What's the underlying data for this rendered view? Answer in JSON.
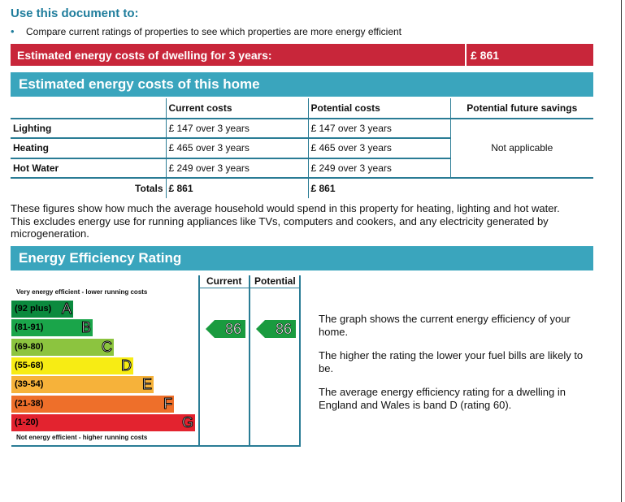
{
  "use_doc": {
    "title": "Use this document to:",
    "bullet": "Compare current ratings of properties to see which properties are more energy efficient"
  },
  "banner": {
    "label": "Estimated energy costs of dwelling for 3 years:",
    "value": "£ 861"
  },
  "costs_section": {
    "title": "Estimated energy costs of this home",
    "headers": [
      "Current costs",
      "Potential costs",
      "Potential future savings"
    ],
    "rows": [
      {
        "label": "Lighting",
        "current": "£ 147 over 3 years",
        "potential": "£ 147 over 3 years"
      },
      {
        "label": "Heating",
        "current": "£ 465 over 3 years",
        "potential": "£ 465 over 3 years"
      },
      {
        "label": "Hot Water",
        "current": "£ 249 over 3 years",
        "potential": "£ 249 over 3 years"
      }
    ],
    "savings": "Not applicable",
    "totals_label": "Totals",
    "total_current": "£ 861",
    "total_potential": "£ 861",
    "note": "These figures show how much the average household would spend in this property for heating, lighting and hot water. This excludes energy use for running appliances like TVs, computers and cookers, and any electricity generated by microgeneration."
  },
  "rating_section": {
    "title": "Energy Efficiency Rating",
    "col_current": "Current",
    "col_potential": "Potential",
    "scale_top": "Very energy efficient - lower running costs",
    "scale_bottom": "Not energy efficient - higher running costs",
    "bands": [
      {
        "range": "(92 plus)",
        "letter": "A",
        "color": "#0b8a3e"
      },
      {
        "range": "(81-91)",
        "letter": "B",
        "color": "#1aa54a"
      },
      {
        "range": "(69-80)",
        "letter": "C",
        "color": "#8cc43f"
      },
      {
        "range": "(55-68)",
        "letter": "D",
        "color": "#f7ec14"
      },
      {
        "range": "(39-54)",
        "letter": "E",
        "color": "#f6b23a"
      },
      {
        "range": "(21-38)",
        "letter": "F",
        "color": "#ee6f2a"
      },
      {
        "range": "(1-20)",
        "letter": "G",
        "color": "#e3232f"
      }
    ],
    "current_rating": "86",
    "potential_rating": "86",
    "rating_color": "#1a9b3f",
    "explanations": [
      "The graph shows the current energy efficiency of your home.",
      "The higher the rating the lower your fuel bills are likely to be.",
      "The average energy efficiency rating for a dwelling in England and Wales is band D (rating 60)."
    ]
  }
}
